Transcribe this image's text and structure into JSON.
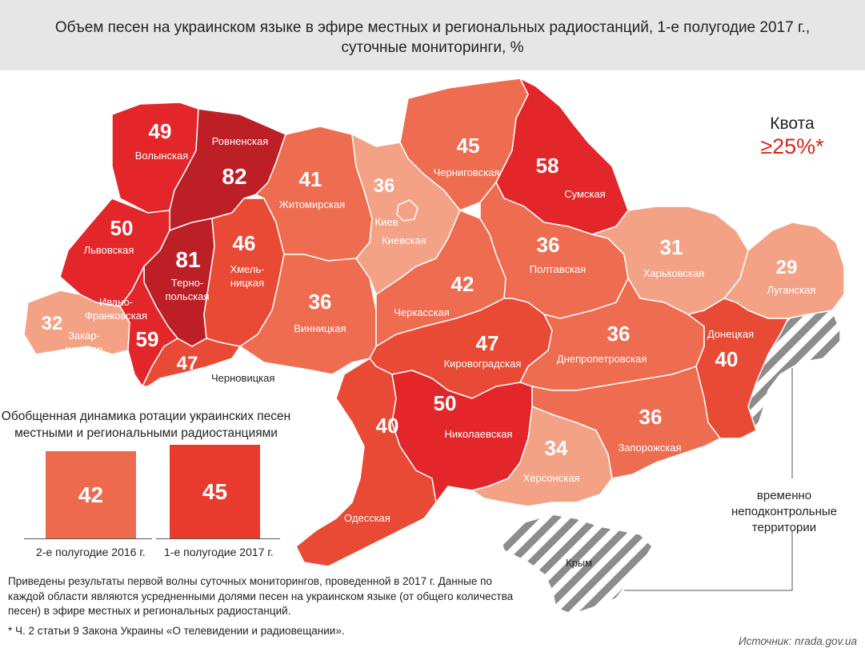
{
  "title_line1": "Объем песен на украинском языке в эфире местных и региональных радиостанций, 1-е полугодие 2017 г.,",
  "title_line2": "суточные мониторинги, %",
  "quota": {
    "label": "Квота",
    "value": "≥25%*"
  },
  "colors": {
    "dark": "#bd1f26",
    "red": "#e3262a",
    "medium": "#e84a35",
    "light": "#ee6c50",
    "pale": "#f4a286",
    "occupied_stripe": "#8c8c8c",
    "header_bg": "#e6e6e6"
  },
  "regions": [
    {
      "name": "Волынская",
      "value": "49"
    },
    {
      "name": "Ровненская",
      "value": "82"
    },
    {
      "name": "Львовская",
      "value": "50"
    },
    {
      "name": "Терно-\nпольская",
      "value": "81"
    },
    {
      "name": "Хмель-\nницкая",
      "value": "46"
    },
    {
      "name": "Закар-\nпатская",
      "value": "32"
    },
    {
      "name": "Ивано-\nФранковская",
      "value": "59"
    },
    {
      "name": "Черновицкая",
      "value": "47"
    },
    {
      "name": "Житомирская",
      "value": "41"
    },
    {
      "name": "Винницкая",
      "value": "36"
    },
    {
      "name": "Киев",
      "value": "36"
    },
    {
      "name": "Киевская",
      "value": ""
    },
    {
      "name": "Черниговская",
      "value": "45"
    },
    {
      "name": "Сумская",
      "value": "58"
    },
    {
      "name": "Черкасская",
      "value": "42"
    },
    {
      "name": "Полтавская",
      "value": "36"
    },
    {
      "name": "Харьковская",
      "value": "31"
    },
    {
      "name": "Луганская",
      "value": "29"
    },
    {
      "name": "Кировоградская",
      "value": "47"
    },
    {
      "name": "Днепропетровская",
      "value": "36"
    },
    {
      "name": "Донецкая",
      "value": "40"
    },
    {
      "name": "Одесская",
      "value": "40"
    },
    {
      "name": "Николаевская",
      "value": "50"
    },
    {
      "name": "Херсонская",
      "value": "34"
    },
    {
      "name": "Запорожская",
      "value": "36"
    },
    {
      "name": "Крым",
      "value": ""
    }
  ],
  "occupied_label": "временно\nнеподконтрольные\nтерритории",
  "chart": {
    "title": "Обобщенная динамика ротации украинских песен местными и региональными радиостанциями"
  },
  "chart_data": {
    "type": "bar",
    "categories": [
      "2-е полугодие 2016 г.",
      "1-е полугодие 2017 г."
    ],
    "values": [
      42,
      45
    ],
    "title": "Обобщенная динамика ротации украинских песен местными и региональными радиостанциями",
    "xlabel": "",
    "ylabel": ""
  },
  "note": "Приведены результаты первой волны суточных мониторингов, проведенной в 2017 г. Данные по каждой области являются усредненными долями песен на украинском языке (от общего количества песен) в эфире местных и региональных радиостанций.",
  "footnote": "* Ч. 2 статьи 9 Закона Украины «О телевидении и радиовещании».",
  "source": "Источник: nrada.gov.ua"
}
